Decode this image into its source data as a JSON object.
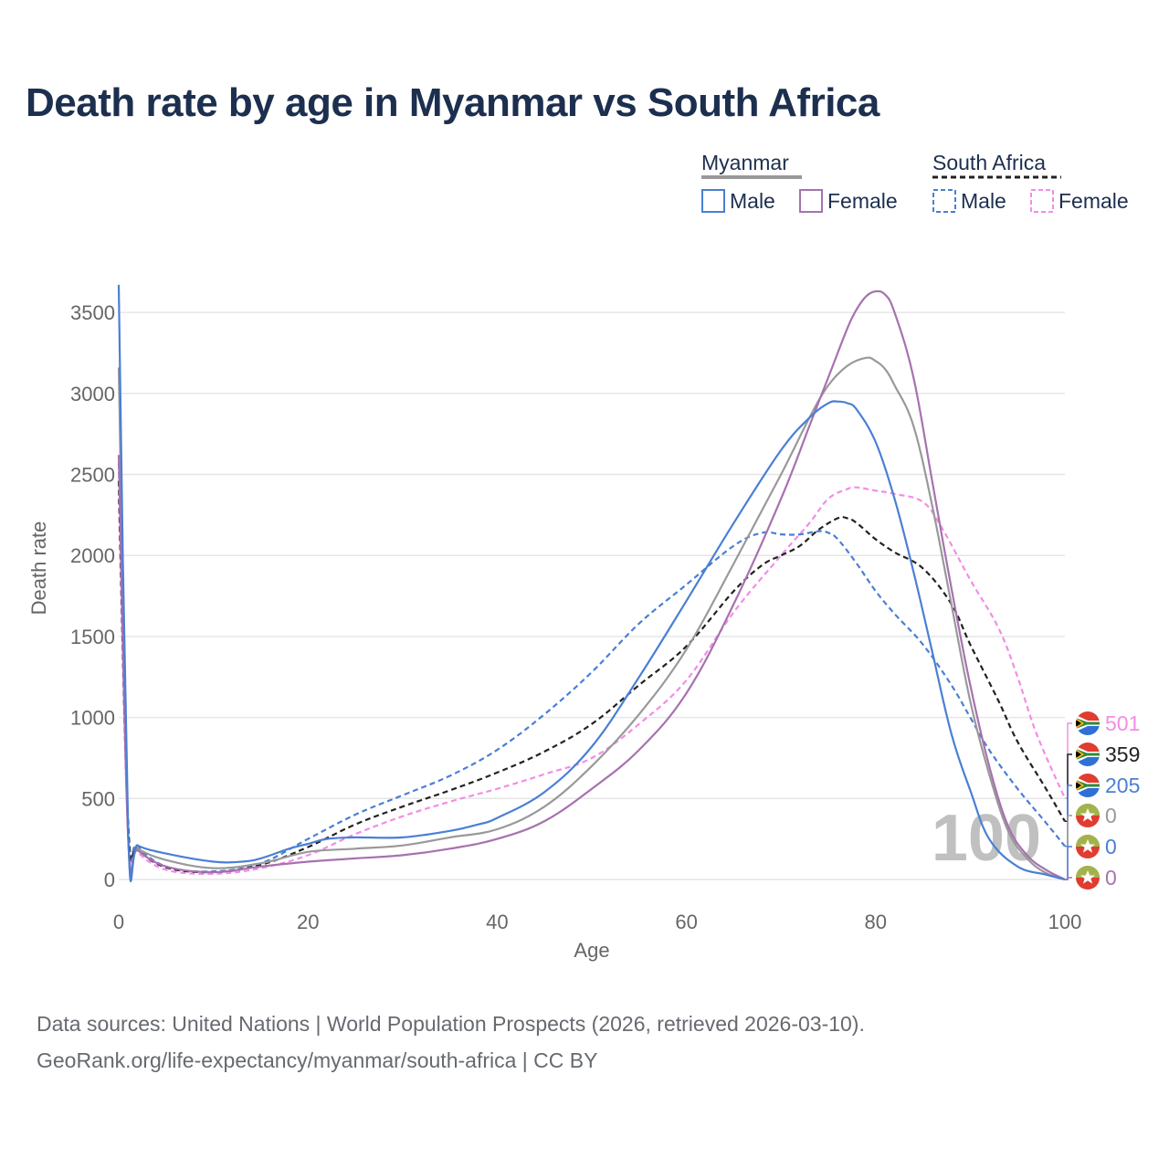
{
  "title": "Death rate by age in Myanmar vs South Africa",
  "source_line1": "Data sources: United Nations | World Population Prospects (2026, retrieved 2026-03-10).",
  "source_line2": "GeoRank.org/life-expectancy/myanmar/south-africa | CC BY",
  "legend": {
    "group1": "Myanmar",
    "group2": "South Africa",
    "male": "Male",
    "female": "Female"
  },
  "colors": {
    "mm_male": "#4a7fd4",
    "mm_female": "#a771b0",
    "mm_total": "#999999",
    "za_male": "#4a7fd4",
    "za_female": "#f28de6",
    "za_total": "#222222",
    "grid": "#e6e6e6",
    "axis_text": "#666666",
    "watermark": "#c0c0c0"
  },
  "chart_data": {
    "type": "line",
    "title": "Death rate by age in Myanmar vs South Africa",
    "xlabel": "Age",
    "ylabel": "Death rate",
    "xlim": [
      0,
      100
    ],
    "ylim": [
      -60,
      3700
    ],
    "x_ticks": [
      0,
      20,
      40,
      60,
      80,
      100
    ],
    "y_ticks": [
      0,
      500,
      1000,
      1500,
      2000,
      2500,
      3000,
      3500
    ],
    "watermark": "100",
    "series": [
      {
        "name": "Myanmar Male",
        "id": "mm_male",
        "dash": "solid",
        "x": [
          0,
          1,
          2,
          5,
          10,
          13,
          15,
          18,
          20,
          22,
          25,
          30,
          35,
          38,
          40,
          45,
          50,
          55,
          60,
          65,
          70,
          73,
          75,
          76,
          77,
          78,
          80,
          82,
          84,
          86,
          88,
          90,
          92,
          95,
          98,
          100
        ],
        "y": [
          3670,
          280,
          210,
          160,
          110,
          110,
          130,
          190,
          220,
          250,
          260,
          260,
          300,
          340,
          380,
          540,
          820,
          1250,
          1720,
          2200,
          2650,
          2850,
          2940,
          2950,
          2940,
          2900,
          2700,
          2350,
          1900,
          1400,
          900,
          550,
          250,
          80,
          30,
          0
        ]
      },
      {
        "name": "Myanmar Female",
        "id": "mm_female",
        "dash": "solid",
        "x": [
          0,
          1,
          2,
          5,
          10,
          15,
          20,
          25,
          30,
          35,
          40,
          45,
          50,
          55,
          60,
          65,
          70,
          73,
          75,
          77,
          78,
          79,
          80,
          81,
          82,
          84,
          86,
          88,
          90,
          92,
          94,
          96,
          98,
          100
        ],
        "y": [
          2620,
          250,
          180,
          80,
          45,
          80,
          110,
          130,
          150,
          190,
          250,
          360,
          560,
          800,
          1150,
          1700,
          2350,
          2800,
          3100,
          3400,
          3520,
          3600,
          3630,
          3610,
          3500,
          3100,
          2450,
          1800,
          1200,
          700,
          330,
          150,
          60,
          0
        ]
      },
      {
        "name": "Myanmar Total",
        "id": "mm_total",
        "dash": "solid",
        "x": [
          0,
          1,
          2,
          5,
          10,
          15,
          20,
          25,
          30,
          35,
          40,
          45,
          50,
          55,
          60,
          65,
          70,
          73,
          75,
          77,
          79,
          80,
          81,
          82,
          84,
          86,
          88,
          90,
          92,
          94,
          96,
          98,
          100
        ],
        "y": [
          3160,
          260,
          190,
          120,
          70,
          100,
          170,
          190,
          210,
          260,
          310,
          450,
          700,
          1020,
          1420,
          1950,
          2500,
          2850,
          3050,
          3170,
          3220,
          3200,
          3150,
          3050,
          2800,
          2300,
          1700,
          1100,
          650,
          300,
          130,
          40,
          0
        ]
      },
      {
        "name": "South Africa Male",
        "id": "za_male",
        "dash": "dash",
        "x": [
          0,
          1,
          2,
          5,
          10,
          15,
          20,
          25,
          30,
          35,
          40,
          45,
          50,
          55,
          60,
          65,
          68,
          70,
          72,
          74,
          75,
          76,
          78,
          80,
          82,
          85,
          88,
          90,
          92,
          95,
          98,
          100
        ],
        "y": [
          2570,
          350,
          210,
          80,
          50,
          100,
          250,
          400,
          520,
          640,
          800,
          1020,
          1280,
          1580,
          1820,
          2060,
          2140,
          2130,
          2130,
          2150,
          2140,
          2100,
          1950,
          1780,
          1640,
          1450,
          1200,
          1000,
          800,
          560,
          350,
          205
        ]
      },
      {
        "name": "South Africa Female",
        "id": "za_female",
        "dash": "dash",
        "x": [
          0,
          1,
          2,
          5,
          10,
          15,
          20,
          25,
          30,
          35,
          40,
          45,
          50,
          55,
          60,
          65,
          70,
          73,
          75,
          77,
          78,
          80,
          82,
          85,
          87,
          90,
          93,
          95,
          97,
          100
        ],
        "y": [
          2350,
          300,
          170,
          60,
          35,
          70,
          150,
          280,
          390,
          480,
          560,
          650,
          750,
          960,
          1230,
          1650,
          2000,
          2200,
          2350,
          2410,
          2420,
          2400,
          2380,
          2330,
          2170,
          1850,
          1550,
          1250,
          900,
          501
        ]
      },
      {
        "name": "South Africa Total",
        "id": "za_total",
        "dash": "dash",
        "x": [
          0,
          1,
          2,
          5,
          10,
          15,
          20,
          25,
          30,
          35,
          40,
          45,
          50,
          55,
          60,
          65,
          68,
          70,
          72,
          74,
          76,
          77,
          78,
          80,
          82,
          85,
          88,
          90,
          93,
          95,
          98,
          100
        ],
        "y": [
          2460,
          330,
          190,
          75,
          45,
          90,
          200,
          340,
          450,
          550,
          660,
          790,
          960,
          1200,
          1440,
          1780,
          1940,
          2000,
          2060,
          2160,
          2230,
          2230,
          2200,
          2100,
          2020,
          1920,
          1700,
          1450,
          1100,
          850,
          560,
          359
        ]
      }
    ],
    "end_labels": [
      {
        "text": "501",
        "series": "za_female",
        "flag": "south-africa"
      },
      {
        "text": "359",
        "series": "za_total",
        "flag": "south-africa"
      },
      {
        "text": "205",
        "series": "za_male",
        "flag": "south-africa"
      },
      {
        "text": "0",
        "series": "mm_total",
        "flag": "myanmar"
      },
      {
        "text": "0",
        "series": "mm_male",
        "flag": "myanmar"
      },
      {
        "text": "0",
        "series": "mm_female",
        "flag": "myanmar"
      }
    ]
  }
}
